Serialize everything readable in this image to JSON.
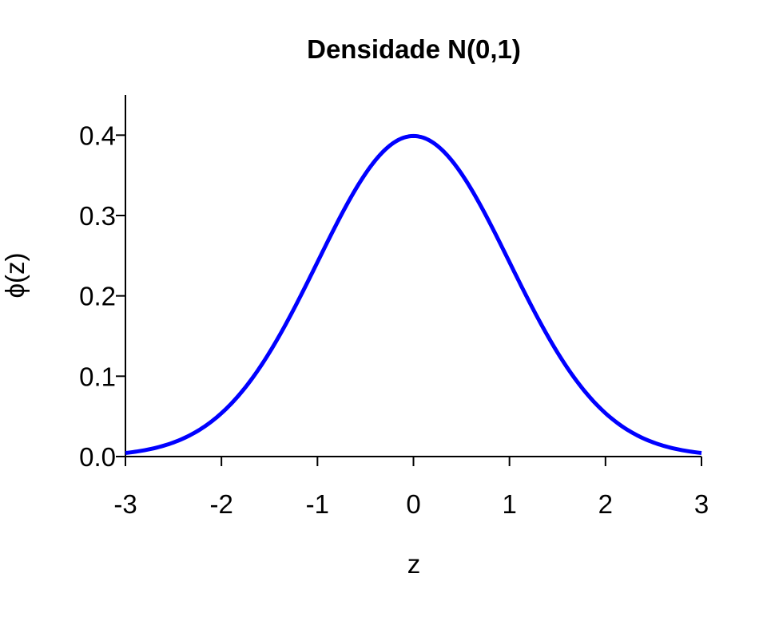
{
  "chart_data": {
    "type": "line",
    "title": "Densidade N(0,1)",
    "xlabel": "z",
    "ylabel": "ϕ(z)",
    "xlim": [
      -3,
      3
    ],
    "ylim": [
      0,
      0.45
    ],
    "x_ticks": [
      -3,
      -2,
      -1,
      0,
      1,
      2,
      3
    ],
    "x_tick_labels": [
      "-3",
      "-2",
      "-1",
      "0",
      "1",
      "2",
      "3"
    ],
    "y_ticks": [
      0.0,
      0.1,
      0.2,
      0.3,
      0.4
    ],
    "y_tick_labels": [
      "0.0",
      "0.1",
      "0.2",
      "0.3",
      "0.4"
    ],
    "grid": false,
    "series": [
      {
        "color": "#0000ff",
        "x": [
          -3.0,
          -2.75,
          -2.5,
          -2.25,
          -2.0,
          -1.75,
          -1.5,
          -1.25,
          -1.0,
          -0.75,
          -0.5,
          -0.25,
          0.0,
          0.25,
          0.5,
          0.75,
          1.0,
          1.25,
          1.5,
          1.75,
          2.0,
          2.25,
          2.5,
          2.75,
          3.0
        ],
        "y": [
          0.0044,
          0.0091,
          0.0175,
          0.0317,
          0.054,
          0.0863,
          0.1295,
          0.1826,
          0.242,
          0.3011,
          0.3521,
          0.3867,
          0.3989,
          0.3867,
          0.3521,
          0.3011,
          0.242,
          0.1826,
          0.1295,
          0.0863,
          0.054,
          0.0317,
          0.0175,
          0.0091,
          0.0044
        ]
      }
    ]
  }
}
